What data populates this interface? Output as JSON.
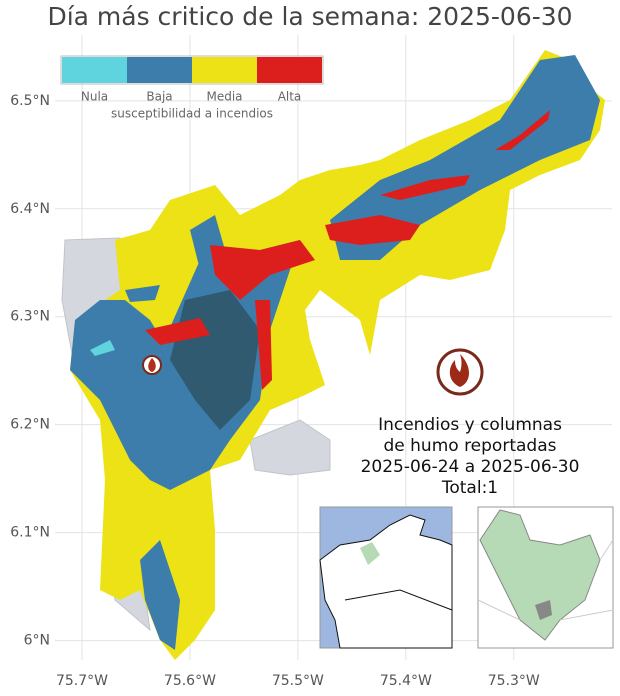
{
  "map": {
    "title": "Día más critico de la semana: 2025-06-30",
    "xlim": [
      -75.725,
      -75.209
    ],
    "ylim": [
      5.982,
      6.561
    ],
    "xticks": [
      {
        "value": -75.7,
        "label": "75.7°W"
      },
      {
        "value": -75.6,
        "label": "75.6°W"
      },
      {
        "value": -75.5,
        "label": "75.5°W"
      },
      {
        "value": -75.4,
        "label": "75.4°W"
      },
      {
        "value": -75.3,
        "label": "75.3°W"
      }
    ],
    "yticks": [
      {
        "value": 6.0,
        "label": "6°N"
      },
      {
        "value": 6.1,
        "label": "6.1°N"
      },
      {
        "value": 6.2,
        "label": "6.2°N"
      },
      {
        "value": 6.3,
        "label": "6.3°N"
      },
      {
        "value": 6.4,
        "label": "6.4°N"
      },
      {
        "value": 6.5,
        "label": "6.5°N"
      }
    ],
    "legend": {
      "title": "susceptibilidad a incendios",
      "classes": [
        {
          "name": "Nula",
          "color": "#5fd3de"
        },
        {
          "name": "Baja",
          "color": "#3c7dab"
        },
        {
          "name": "Media",
          "color": "#ece215"
        },
        {
          "name": "Alta",
          "color": "#dc1f1c"
        }
      ]
    },
    "annotation": [
      "Incendios y columnas",
      "de humo reportadas",
      "2025-06-24 a 2025-06-30",
      "Total:1"
    ]
  }
}
